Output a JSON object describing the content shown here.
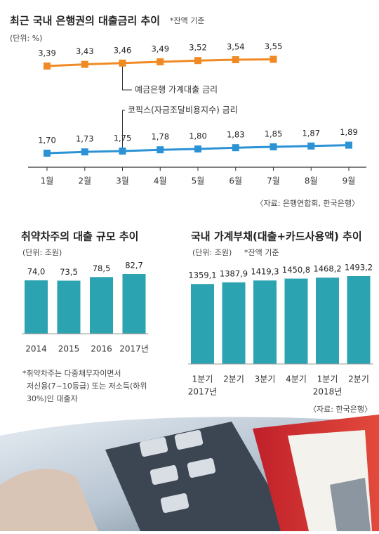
{
  "chart_data": [
    {
      "type": "line",
      "title": "최근 국내 은행권의 대출금리 추이",
      "subtitle": "*잔액 기준",
      "unit": "(단위: %)",
      "categories": [
        "1월",
        "2월",
        "3월",
        "4월",
        "5월",
        "6월",
        "7월",
        "8월",
        "9월"
      ],
      "series": [
        {
          "name": "예금은행 가계대출 금리",
          "color": "#f08a24",
          "values": [
            3.39,
            3.43,
            3.46,
            3.49,
            3.52,
            3.54,
            3.55,
            null,
            null
          ],
          "value_labels": [
            "3,39",
            "3,43",
            "3,46",
            "3,49",
            "3,52",
            "3,54",
            "3,55",
            null,
            null
          ]
        },
        {
          "name": "코픽스(자금조달비용지수) 금리",
          "color": "#2b93d5",
          "values": [
            1.7,
            1.73,
            1.75,
            1.78,
            1.8,
            1.83,
            1.85,
            1.87,
            1.89
          ],
          "value_labels": [
            "1,70",
            "1,73",
            "1,75",
            "1,78",
            "1,80",
            "1,83",
            "1,85",
            "1,87",
            "1,89"
          ]
        }
      ],
      "source": "〈자료: 은행연합회, 한국은행〉"
    },
    {
      "type": "bar",
      "title": "취약차주의 대출 규모 추이",
      "unit": "(단위: 조원)",
      "categories": [
        "2014",
        "2015",
        "2016",
        "2017년"
      ],
      "values": [
        74.0,
        73.5,
        78.5,
        82.7
      ],
      "value_labels": [
        "74,0",
        "73,5",
        "78,5",
        "82,7"
      ],
      "color": "#2ba3b1",
      "notes": [
        "*취약차주는 다중채무자이면서",
        "저신용(7~10등급) 또는 저소득(하위",
        "30%)인 대출자"
      ]
    },
    {
      "type": "bar",
      "title": "국내 가계부채(대출+카드사용액) 추이",
      "unit": "(단위: 조원)",
      "subtitle": "*잔액 기준",
      "categories": [
        "1분기",
        "2분기",
        "3분기",
        "4분기",
        "1분기",
        "2분기"
      ],
      "year_labels": [
        "2017년",
        null,
        null,
        null,
        "2018년",
        null
      ],
      "values": [
        1359.1,
        1387.9,
        1419.3,
        1450.8,
        1468.2,
        1493.2
      ],
      "value_labels": [
        "1359,1",
        "1387,9",
        "1419,3",
        "1450,8",
        "1468,2",
        "1493,2"
      ],
      "color": "#2ba3b1",
      "source": "〈자료: 한국은행〉"
    }
  ]
}
